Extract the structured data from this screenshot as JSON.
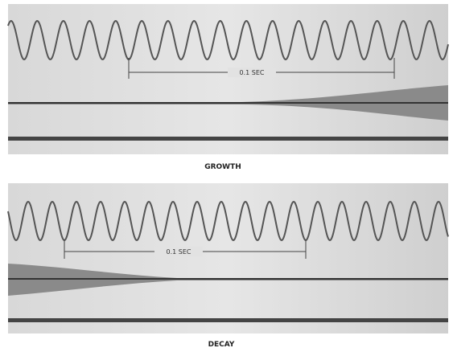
{
  "panels": [
    {
      "annotation": "0.1 SEC",
      "caption": "GROWTH"
    },
    {
      "annotation": "0.1 SEC",
      "caption": "DECAY"
    }
  ]
}
